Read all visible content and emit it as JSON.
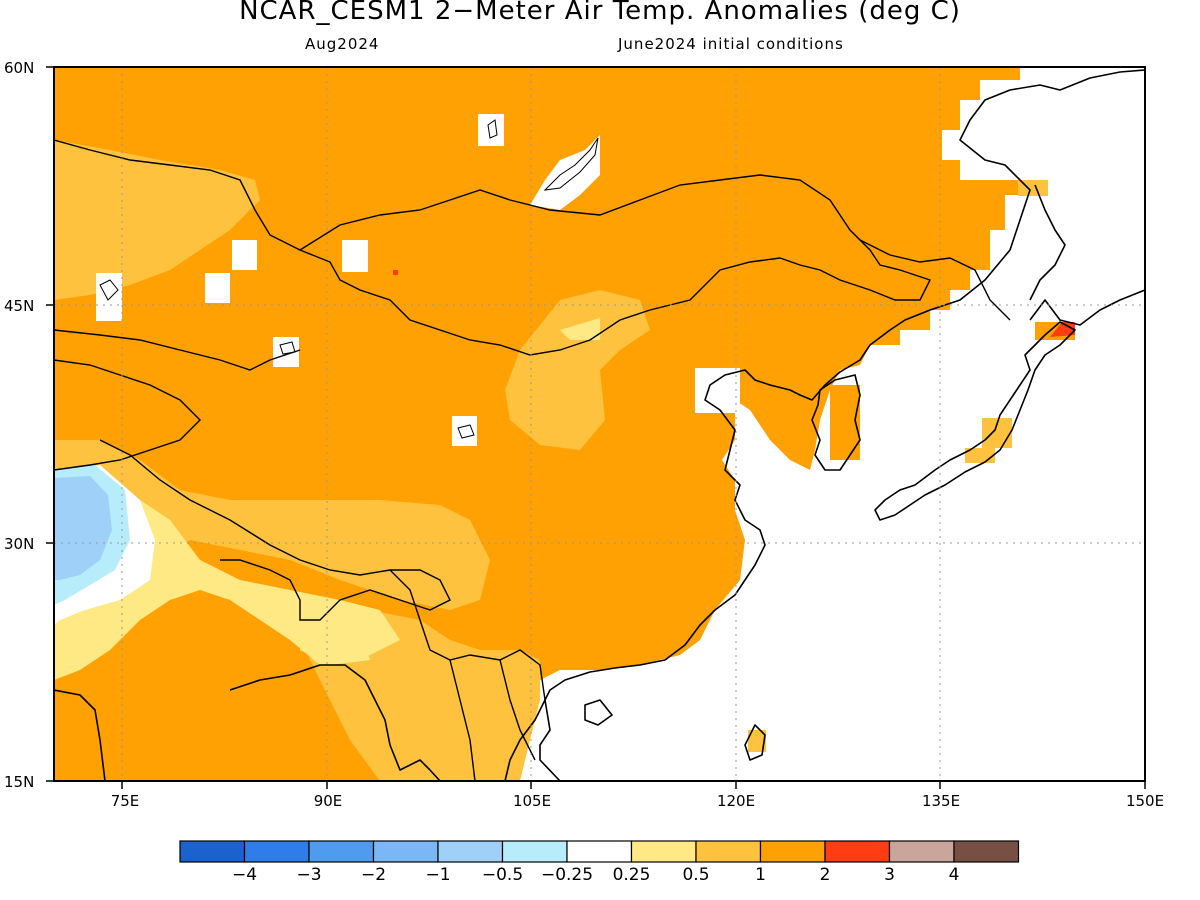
{
  "title": "NCAR_CESM1 2−Meter Air Temp. Anomalies (deg C)",
  "subtitle_left": "Aug2024",
  "subtitle_right": "June2024 initial conditions",
  "lat_labels": [
    "60N",
    "45N",
    "30N",
    "15N"
  ],
  "lon_labels": [
    "75E",
    "90E",
    "105E",
    "120E",
    "135E",
    "150E"
  ],
  "map_extent": {
    "lon_min": 70,
    "lon_max": 150,
    "lat_min": 15,
    "lat_max": 60
  },
  "colorbar": {
    "colors": [
      "#1c62cf",
      "#2e7de8",
      "#4f9bf0",
      "#7bb7f4",
      "#9fd0f7",
      "#b7ecfa",
      "#ffffff",
      "#ffe985",
      "#ffc23f",
      "#ffa003",
      "#ff3c12",
      "#caa59c",
      "#785043"
    ],
    "labels": [
      "−4",
      "−3",
      "−2",
      "−1",
      "−0.5",
      "−0.25",
      "0.25",
      "0.5",
      "1",
      "2",
      "3",
      "4"
    ]
  },
  "legend_colors": {
    "base_anomaly": "#ffa003",
    "light_warm": "#ffc23f",
    "pale_warm": "#ffe985",
    "cool": "#9fd0f7",
    "strong_warm": "#ff3c12",
    "neutral": "#ffffff"
  }
}
